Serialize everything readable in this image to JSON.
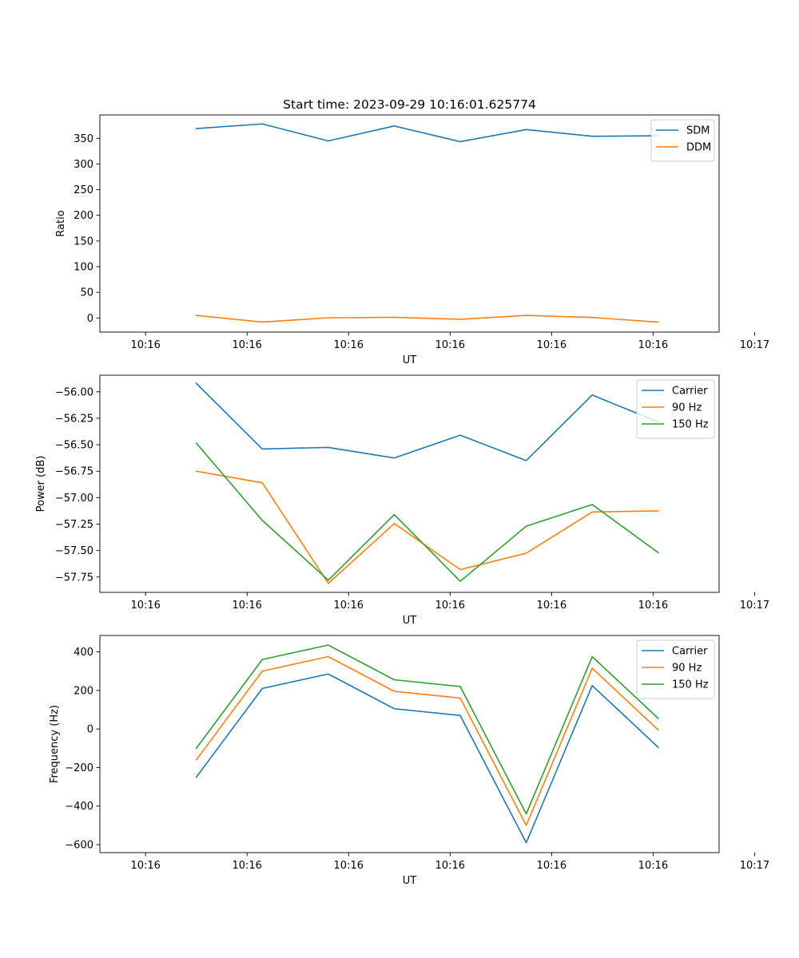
{
  "figure": {
    "background": "#ffffff"
  },
  "chart_data": [
    {
      "type": "line",
      "title": "Start time: 2023-09-29 10:16:01.625774",
      "xlabel": "UT",
      "ylabel": "Ratio",
      "x": [
        0.5,
        1.15,
        1.8,
        2.45,
        3.1,
        3.75,
        4.4,
        5.05
      ],
      "xlim": [
        -0.45,
        5.65
      ],
      "xticks": [
        0,
        1,
        2,
        3,
        4,
        5,
        6
      ],
      "xtick_labels": [
        "10:16",
        "10:16",
        "10:16",
        "10:16",
        "10:16",
        "10:16",
        "10:17"
      ],
      "ylim": [
        -27.5,
        395.5
      ],
      "yticks": [
        0,
        50,
        100,
        150,
        200,
        250,
        300,
        350
      ],
      "ytick_labels": [
        "0",
        "50",
        "100",
        "150",
        "200",
        "250",
        "300",
        "350"
      ],
      "legend_position": "top-right",
      "series": [
        {
          "name": "SDM",
          "color": "#1f77b4",
          "values": [
            369,
            378,
            345,
            374,
            343.5,
            367,
            354,
            355
          ]
        },
        {
          "name": "DDM",
          "color": "#ff7f0e",
          "values": [
            5,
            -8,
            0.3,
            1.3,
            -2.5,
            5,
            1,
            -8
          ]
        }
      ]
    },
    {
      "type": "line",
      "title": "",
      "xlabel": "UT",
      "ylabel": "Power (dB)",
      "x": [
        0.5,
        1.15,
        1.8,
        2.45,
        3.1,
        3.75,
        4.4,
        5.05
      ],
      "xlim": [
        -0.45,
        5.65
      ],
      "xticks": [
        0,
        1,
        2,
        3,
        4,
        5,
        6
      ],
      "xtick_labels": [
        "10:16",
        "10:16",
        "10:16",
        "10:16",
        "10:16",
        "10:16",
        "10:17"
      ],
      "ylim": [
        -57.895,
        -55.843
      ],
      "yticks": [
        -57.75,
        -57.5,
        -57.25,
        -57.0,
        -56.75,
        -56.5,
        -56.25,
        -56.0
      ],
      "ytick_labels": [
        "−57.75",
        "−57.50",
        "−57.25",
        "−57.00",
        "−56.75",
        "−56.50",
        "−56.25",
        "−56.00"
      ],
      "legend_position": "top-right",
      "series": [
        {
          "name": "Carrier",
          "color": "#1f77b4",
          "values": [
            -55.92,
            -56.54,
            -56.525,
            -56.625,
            -56.41,
            -56.65,
            -56.03,
            -56.285
          ]
        },
        {
          "name": "90 Hz",
          "color": "#ff7f0e",
          "values": [
            -56.75,
            -56.86,
            -57.81,
            -57.245,
            -57.68,
            -57.525,
            -57.135,
            -57.125
          ]
        },
        {
          "name": "150 Hz",
          "color": "#2ca02c",
          "values": [
            -56.485,
            -57.215,
            -57.78,
            -57.16,
            -57.79,
            -57.27,
            -57.065,
            -57.52
          ]
        }
      ]
    },
    {
      "type": "line",
      "title": "",
      "xlabel": "UT",
      "ylabel": "Frequency (Hz)",
      "x": [
        0.5,
        1.15,
        1.8,
        2.45,
        3.1,
        3.75,
        4.4,
        5.05
      ],
      "xlim": [
        -0.45,
        5.65
      ],
      "xticks": [
        0,
        1,
        2,
        3,
        4,
        5,
        6
      ],
      "xtick_labels": [
        "10:16",
        "10:16",
        "10:16",
        "10:16",
        "10:16",
        "10:16",
        "10:17"
      ],
      "ylim": [
        -641.2,
        484.8
      ],
      "yticks": [
        -600,
        -400,
        -200,
        0,
        200,
        400
      ],
      "ytick_labels": [
        "−600",
        "−400",
        "−200",
        "0",
        "200",
        "400"
      ],
      "legend_position": "top-right",
      "series": [
        {
          "name": "Carrier",
          "color": "#1f77b4",
          "values": [
            -250,
            210,
            285,
            105,
            70,
            -590,
            225,
            -95
          ]
        },
        {
          "name": "90 Hz",
          "color": "#ff7f0e",
          "values": [
            -160,
            300,
            375,
            195,
            160,
            -500,
            315,
            -5
          ]
        },
        {
          "name": "150 Hz",
          "color": "#2ca02c",
          "values": [
            -100,
            360,
            435,
            255,
            220,
            -440,
            375,
            55
          ]
        }
      ]
    }
  ]
}
